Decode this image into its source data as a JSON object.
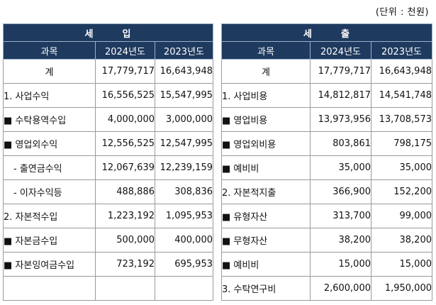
{
  "unit_note": "(단위 : 천원)",
  "income": {
    "title_left": "세",
    "title_right": "입",
    "col_subject": "과목",
    "col_2024": "2024년도",
    "col_2023": "2023년도",
    "rows": [
      {
        "label": "계",
        "v2024": "17,779,717",
        "v2023": "16,643,948"
      },
      {
        "label": "1. 사업수익",
        "v2024": "16,556,525",
        "v2023": "15,547,995"
      },
      {
        "label": "■ 수탁용역수입",
        "v2024": "4,000,000",
        "v2023": "3,000,000"
      },
      {
        "label": "■ 영업외수익",
        "v2024": "12,556,525",
        "v2023": "12,547,995"
      },
      {
        "label": "- 출연금수익",
        "v2024": "12,067,639",
        "v2023": "12,239,159"
      },
      {
        "label": "- 이자수익등",
        "v2024": "488,886",
        "v2023": "308,836"
      },
      {
        "label": "2. 자본적수입",
        "v2024": "1,223,192",
        "v2023": "1,095,953"
      },
      {
        "label": "■ 자본금수입",
        "v2024": "500,000",
        "v2023": "400,000"
      },
      {
        "label": "■ 자본잉여금수입",
        "v2024": "723,192",
        "v2023": "695,953"
      },
      {
        "label": "",
        "v2024": "",
        "v2023": ""
      }
    ]
  },
  "expense": {
    "title_left": "세",
    "title_right": "출",
    "col_subject": "과목",
    "col_2024": "2024년도",
    "col_2023": "2023년도",
    "rows": [
      {
        "label": "계",
        "v2024": "17,779,717",
        "v2023": "16,643,948"
      },
      {
        "label": "1. 사업비용",
        "v2024": "14,812,817",
        "v2023": "14,541,748"
      },
      {
        "label": "■ 영업비용",
        "v2024": "13,973,956",
        "v2023": "13,708,573"
      },
      {
        "label": "■ 영업외비용",
        "v2024": "803,861",
        "v2023": "798,175"
      },
      {
        "label": "■ 예비비",
        "v2024": "35,000",
        "v2023": "35,000"
      },
      {
        "label": "2. 자본적지출",
        "v2024": "366,900",
        "v2023": "152,200"
      },
      {
        "label": "■ 유형자산",
        "v2024": "313,700",
        "v2023": "99,000"
      },
      {
        "label": "■ 무형자산",
        "v2024": "38,200",
        "v2023": "38,200"
      },
      {
        "label": "■ 예비비",
        "v2024": "15,000",
        "v2023": "15,000"
      },
      {
        "label": "3. 수탁연구비",
        "v2024": "2,600,000",
        "v2023": "1,950,000"
      }
    ]
  }
}
